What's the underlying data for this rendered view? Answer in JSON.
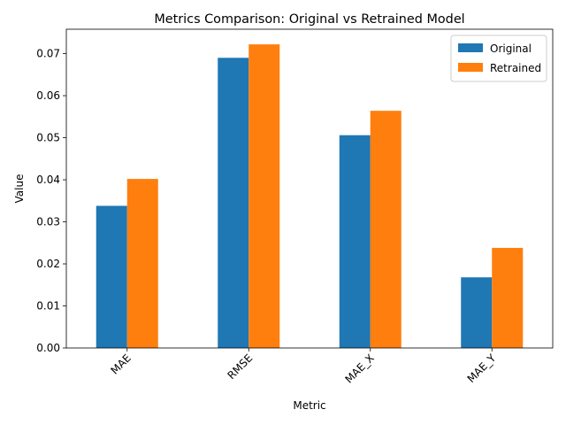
{
  "chart_data": {
    "type": "bar",
    "title": "Metrics Comparison: Original vs Retrained Model",
    "xlabel": "Metric",
    "ylabel": "Value",
    "categories": [
      "MAE",
      "RMSE",
      "MAE_X",
      "MAE_Y"
    ],
    "series": [
      {
        "name": "Original",
        "color": "#1f77b4",
        "values": [
          0.0338,
          0.069,
          0.0506,
          0.0168
        ]
      },
      {
        "name": "Retrained",
        "color": "#ff7f0e",
        "values": [
          0.0402,
          0.0722,
          0.0564,
          0.0238
        ]
      }
    ],
    "ylim": [
      0,
      0.0758
    ],
    "yticks": [
      0.0,
      0.01,
      0.02,
      0.03,
      0.04,
      0.05,
      0.06,
      0.07
    ],
    "ytick_labels": [
      "0.00",
      "0.01",
      "0.02",
      "0.03",
      "0.04",
      "0.05",
      "0.06",
      "0.07"
    ],
    "grid": false,
    "legend_position": "top-right"
  }
}
